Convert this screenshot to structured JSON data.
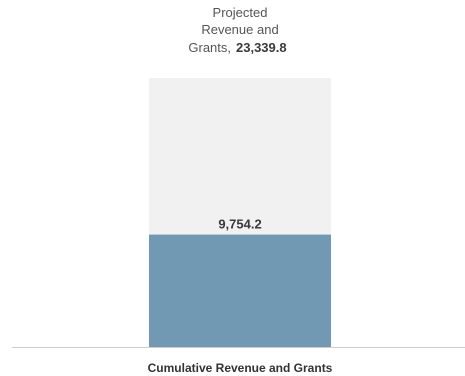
{
  "chart_data": {
    "type": "bar",
    "categories": [
      "Cumulative Revenue and Grants"
    ],
    "series": [
      {
        "values": [
          9754.2
        ]
      }
    ],
    "projected": {
      "label_lines": [
        "Projected",
        "Revenue and",
        "Grants,"
      ],
      "value": 23339.8,
      "value_label": "23,339.8"
    },
    "value_labels": [
      "9,754.2"
    ],
    "ylim": [
      0,
      23339.8
    ],
    "grid": false,
    "colors": {
      "actual": "#7199b3",
      "projected": "#f1f1f1",
      "baseline": "#cccccc"
    }
  }
}
